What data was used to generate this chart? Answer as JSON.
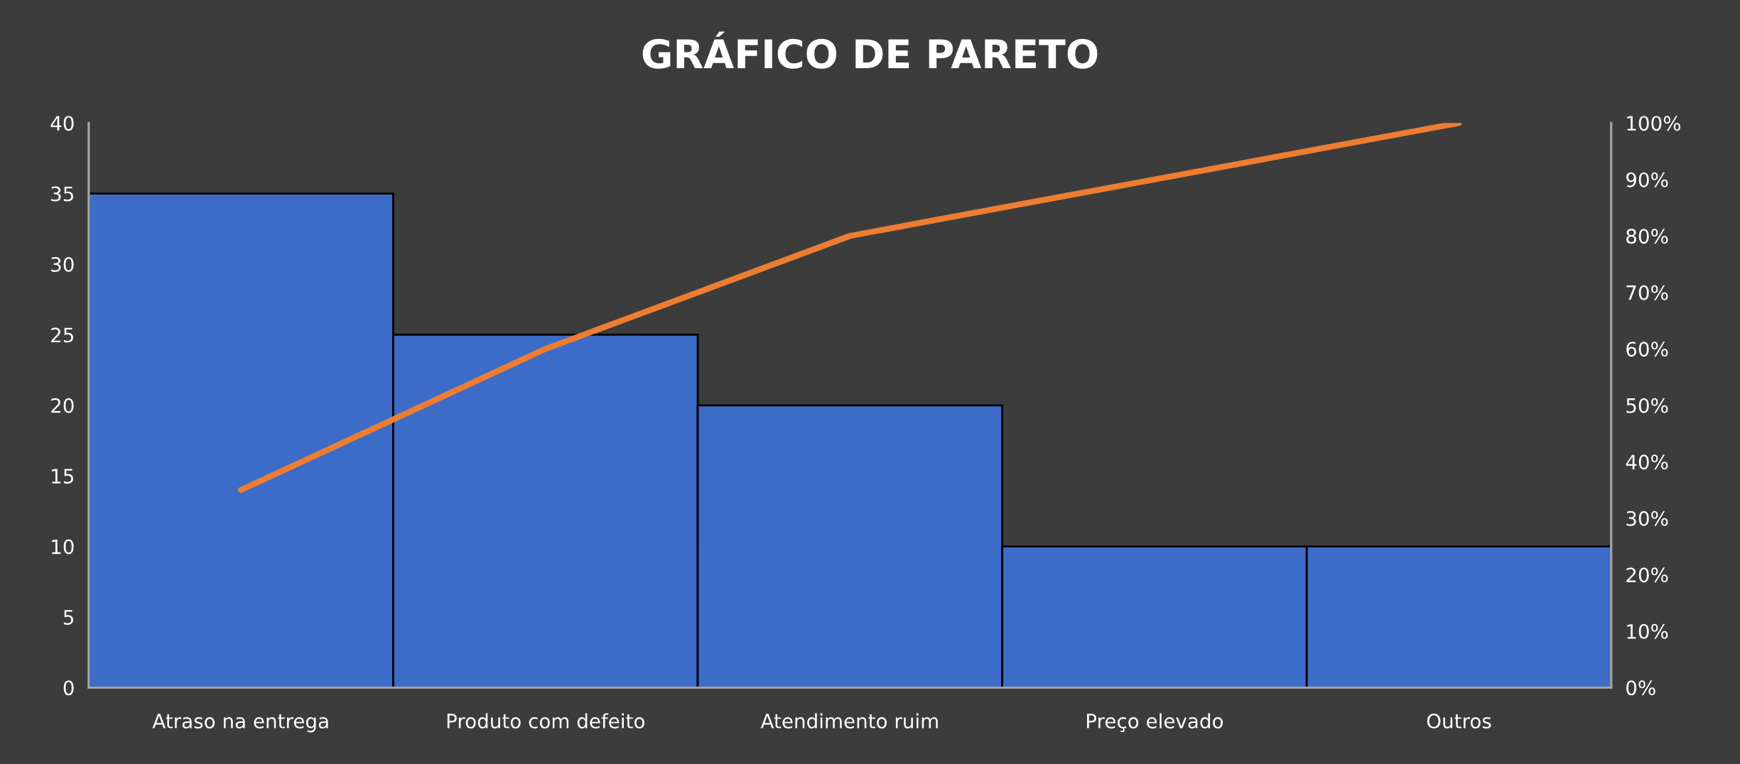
{
  "chart_data": {
    "type": "bar",
    "title": "GRÁFICO DE PARETO",
    "categories": [
      "Atraso na entrega",
      "Produto com defeito",
      "Atendimento ruim",
      "Preço elevado",
      "Outros"
    ],
    "series": [
      {
        "color": "#3d6cc8",
        "values": [
          35,
          25,
          20,
          10,
          10
        ]
      },
      {
        "type": "line",
        "axis": "y2",
        "color": "#ed7d31",
        "values": [
          35,
          60,
          80,
          90,
          100
        ]
      }
    ],
    "ylim": [
      0,
      40
    ],
    "yticks": [
      0,
      5,
      10,
      15,
      20,
      25,
      30,
      35,
      40
    ],
    "y2lim": [
      0,
      100
    ],
    "y2ticks": [
      {
        "value": 0,
        "label": "0%"
      },
      {
        "value": 10,
        "label": "10%"
      },
      {
        "value": 20,
        "label": "20%"
      },
      {
        "value": 30,
        "label": "30%"
      },
      {
        "value": 40,
        "label": "40%"
      },
      {
        "value": 50,
        "label": "50%"
      },
      {
        "value": 60,
        "label": "60%"
      },
      {
        "value": 70,
        "label": "70%"
      },
      {
        "value": 80,
        "label": "80%"
      },
      {
        "value": 90,
        "label": "90%"
      },
      {
        "value": 100,
        "label": "100%"
      }
    ],
    "grid": false,
    "legend": false,
    "marker": "none",
    "line_style": "solid"
  }
}
